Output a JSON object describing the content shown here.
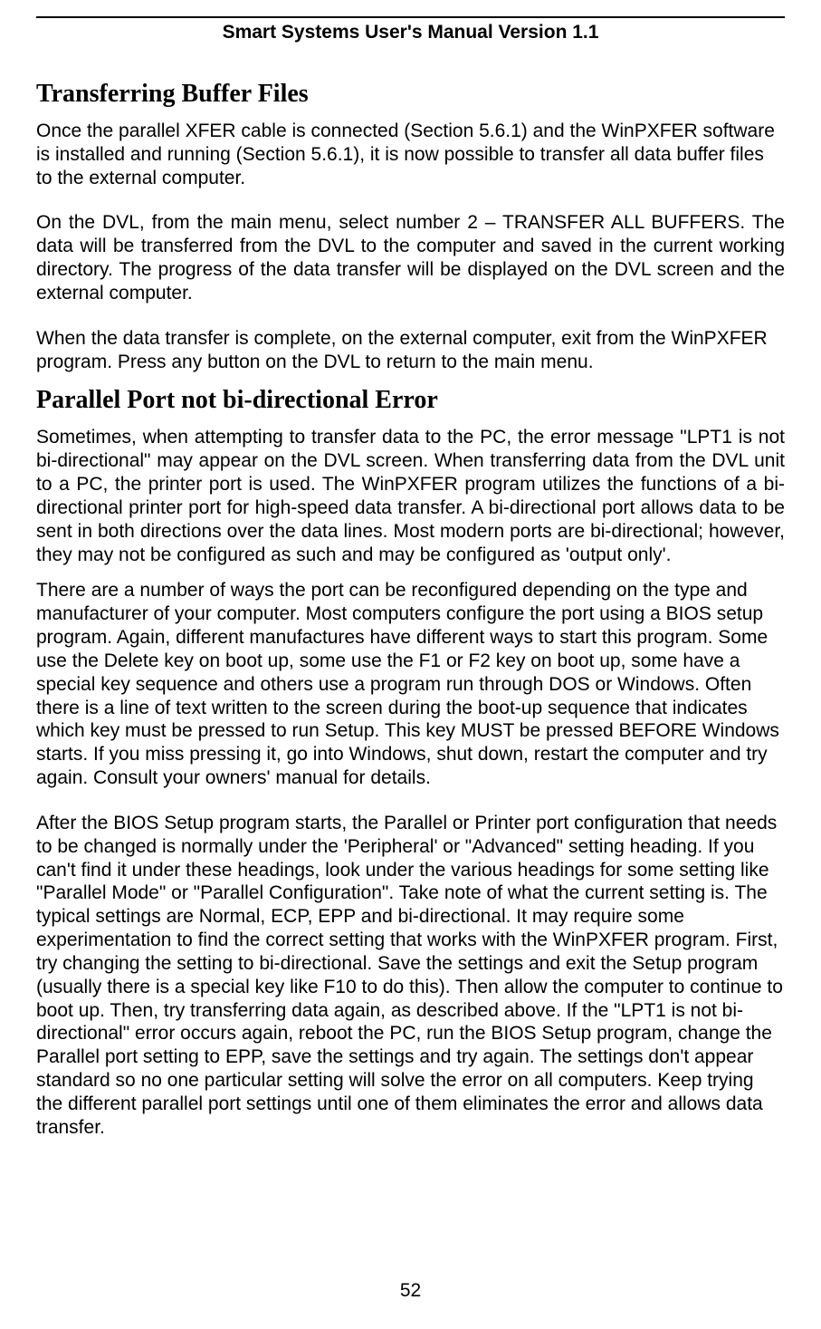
{
  "header": {
    "title": "Smart Systems User's Manual Version 1.1"
  },
  "sections": {
    "s1": {
      "heading": "Transferring Buffer Files",
      "p1": "Once the parallel XFER cable is connected (Section 5.6.1) and the WinPXFER software is installed and running (Section 5.6.1), it is now possible to transfer all data buffer files to the external computer.",
      "p2": "On the DVL, from the main menu, select number 2 – TRANSFER ALL BUFFERS. The data will be transferred from the DVL to the computer and saved in the current working directory.  The progress of the data transfer will be displayed on the DVL screen and the external computer.",
      "p3": "When the data transfer is complete, on the external computer, exit from the WinPXFER program. Press any button on the DVL to return to the main menu."
    },
    "s2": {
      "heading": "Parallel Port not bi-directional Error",
      "p1": "Sometimes, when attempting to transfer data to the PC, the error message \"LPT1 is not bi-directional\" may appear on the DVL screen.  When transferring data from the DVL unit to a PC, the printer port is used.  The WinPXFER program utilizes the functions of a bi-directional printer port for high-speed data transfer.  A bi-directional port allows data to be sent in both directions over the data lines.  Most modern ports are bi-directional; however, they may not be configured as such and may be configured as 'output only'.",
      "p2": "There are a number of ways the port can be reconfigured depending on the type and manufacturer of your computer.  Most computers configure the port using a BIOS setup program.  Again, different manufactures have different ways to start this program.  Some use the Delete key on boot up, some use the F1 or F2 key on boot up, some have a special key sequence and others use a program run through DOS or Windows.  Often there is a line of text written to the screen during the boot-up sequence that indicates which key must be pressed to run Setup.  This key MUST be pressed BEFORE Windows starts.  If you miss pressing it, go into Windows, shut down, restart the computer and try again.  Consult your owners' manual for details.",
      "p3": "After the BIOS Setup program starts, the Parallel or Printer port configuration that needs to be changed is normally under the 'Peripheral' or \"Advanced\" setting heading.  If you can't find it under these headings, look under the various headings for some setting like \"Parallel Mode\" or \"Parallel Configuration\".  Take note of what the current setting is.  The typical settings are Normal, ECP, EPP and bi-directional.  It may require some experimentation to find the correct setting that works with the WinPXFER program. First, try changing the setting to bi-directional.  Save the settings and exit the Setup program (usually there is a special key like F10 to do this).  Then allow the computer to continue to boot up.  Then, try transferring data again, as described above.  If the \"LPT1 is not bi-directional\" error occurs again, reboot the PC, run the BIOS Setup program, change the Parallel port setting to EPP, save the settings and try again.  The settings don't appear standard so no one particular setting will solve the error on all computers.  Keep trying the different parallel port settings until one of them eliminates the error and allows data transfer."
    }
  },
  "pageNumber": "52"
}
